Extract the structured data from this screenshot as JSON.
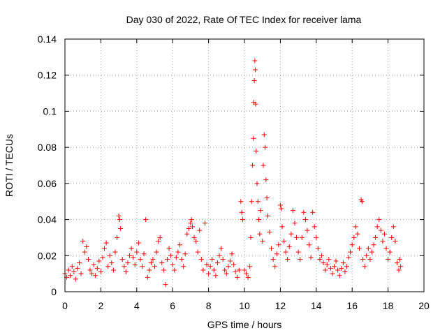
{
  "chart_data": {
    "type": "scatter",
    "title": "Day 030 of 2022, Rate Of TEC Index for receiver lama",
    "xlabel": "GPS time / hours",
    "ylabel": "ROTI / TECUs",
    "xlim": [
      0,
      20
    ],
    "ylim": [
      0,
      0.14
    ],
    "x_ticks": [
      0,
      2,
      4,
      6,
      8,
      10,
      12,
      14,
      16,
      18,
      20
    ],
    "x_tick_labels": [
      "0",
      "2",
      "4",
      "6",
      "8",
      "10",
      "12",
      "14",
      "16",
      "18",
      "20"
    ],
    "y_ticks": [
      0,
      0.02,
      0.04,
      0.06,
      0.08,
      0.1,
      0.12,
      0.14
    ],
    "y_tick_labels": [
      "0",
      "0.02",
      "0.04",
      "0.06",
      "0.08",
      "0.1",
      "0.12",
      "0.14"
    ],
    "grid": true,
    "marker": "+",
    "color": "#ff0000",
    "series": [
      {
        "name": "ROTI",
        "points": [
          [
            0.0,
            0.01
          ],
          [
            0.1,
            0.008
          ],
          [
            0.2,
            0.012
          ],
          [
            0.3,
            0.009
          ],
          [
            0.4,
            0.014
          ],
          [
            0.5,
            0.011
          ],
          [
            0.6,
            0.007
          ],
          [
            0.7,
            0.013
          ],
          [
            0.8,
            0.016
          ],
          [
            0.9,
            0.01
          ],
          [
            1.0,
            0.028
          ],
          [
            1.1,
            0.022
          ],
          [
            1.2,
            0.025
          ],
          [
            1.3,
            0.018
          ],
          [
            1.4,
            0.012
          ],
          [
            1.5,
            0.01
          ],
          [
            1.6,
            0.015
          ],
          [
            1.7,
            0.009
          ],
          [
            1.8,
            0.013
          ],
          [
            1.9,
            0.017
          ],
          [
            2.0,
            0.011
          ],
          [
            2.1,
            0.019
          ],
          [
            2.2,
            0.024
          ],
          [
            2.3,
            0.027
          ],
          [
            2.4,
            0.014
          ],
          [
            2.5,
            0.02
          ],
          [
            2.6,
            0.016
          ],
          [
            2.7,
            0.012
          ],
          [
            2.8,
            0.022
          ],
          [
            2.9,
            0.03
          ],
          [
            3.0,
            0.042
          ],
          [
            3.05,
            0.04
          ],
          [
            3.1,
            0.035
          ],
          [
            3.2,
            0.018
          ],
          [
            3.3,
            0.014
          ],
          [
            3.4,
            0.011
          ],
          [
            3.5,
            0.016
          ],
          [
            3.6,
            0.02
          ],
          [
            3.7,
            0.024
          ],
          [
            3.8,
            0.019
          ],
          [
            3.9,
            0.015
          ],
          [
            4.0,
            0.022
          ],
          [
            4.1,
            0.027
          ],
          [
            4.2,
            0.018
          ],
          [
            4.3,
            0.014
          ],
          [
            4.4,
            0.021
          ],
          [
            4.5,
            0.04
          ],
          [
            4.6,
            0.008
          ],
          [
            4.7,
            0.012
          ],
          [
            4.8,
            0.016
          ],
          [
            4.9,
            0.018
          ],
          [
            5.0,
            0.014
          ],
          [
            5.1,
            0.022
          ],
          [
            5.2,
            0.028
          ],
          [
            5.3,
            0.03
          ],
          [
            5.4,
            0.016
          ],
          [
            5.5,
            0.012
          ],
          [
            5.6,
            0.004
          ],
          [
            5.7,
            0.018
          ],
          [
            5.8,
            0.024
          ],
          [
            5.9,
            0.02
          ],
          [
            6.0,
            0.015
          ],
          [
            6.1,
            0.012
          ],
          [
            6.2,
            0.019
          ],
          [
            6.3,
            0.022
          ],
          [
            6.4,
            0.026
          ],
          [
            6.5,
            0.018
          ],
          [
            6.6,
            0.014
          ],
          [
            6.7,
            0.021
          ],
          [
            6.8,
            0.032
          ],
          [
            6.9,
            0.035
          ],
          [
            7.0,
            0.038
          ],
          [
            7.05,
            0.04
          ],
          [
            7.1,
            0.036
          ],
          [
            7.2,
            0.03
          ],
          [
            7.3,
            0.028
          ],
          [
            7.4,
            0.022
          ],
          [
            7.5,
            0.034
          ],
          [
            7.6,
            0.018
          ],
          [
            7.7,
            0.012
          ],
          [
            7.8,
            0.038
          ],
          [
            7.9,
            0.015
          ],
          [
            8.0,
            0.01
          ],
          [
            8.1,
            0.014
          ],
          [
            8.2,
            0.018
          ],
          [
            8.3,
            0.012
          ],
          [
            8.4,
            0.009
          ],
          [
            8.5,
            0.016
          ],
          [
            8.6,
            0.02
          ],
          [
            8.7,
            0.024
          ],
          [
            8.8,
            0.018
          ],
          [
            8.9,
            0.012
          ],
          [
            9.0,
            0.01
          ],
          [
            9.1,
            0.014
          ],
          [
            9.2,
            0.017
          ],
          [
            9.3,
            0.021
          ],
          [
            9.4,
            0.015
          ],
          [
            9.5,
            0.011
          ],
          [
            9.6,
            0.008
          ],
          [
            9.7,
            0.012
          ],
          [
            9.8,
            0.05
          ],
          [
            9.85,
            0.044
          ],
          [
            9.9,
            0.04
          ],
          [
            10.0,
            0.012
          ],
          [
            10.1,
            0.01
          ],
          [
            10.2,
            0.008
          ],
          [
            10.3,
            0.014
          ],
          [
            10.35,
            0.03
          ],
          [
            10.4,
            0.05
          ],
          [
            10.45,
            0.07
          ],
          [
            10.5,
            0.085
          ],
          [
            10.52,
            0.105
          ],
          [
            10.55,
            0.117
          ],
          [
            10.58,
            0.128
          ],
          [
            10.6,
            0.123
          ],
          [
            10.62,
            0.104
          ],
          [
            10.65,
            0.078
          ],
          [
            10.7,
            0.06
          ],
          [
            10.75,
            0.05
          ],
          [
            10.8,
            0.04
          ],
          [
            10.85,
            0.032
          ],
          [
            10.9,
            0.045
          ],
          [
            11.0,
            0.028
          ],
          [
            11.05,
            0.07
          ],
          [
            11.1,
            0.087
          ],
          [
            11.15,
            0.08
          ],
          [
            11.2,
            0.062
          ],
          [
            11.25,
            0.052
          ],
          [
            11.3,
            0.042
          ],
          [
            11.4,
            0.033
          ],
          [
            11.5,
            0.024
          ],
          [
            11.6,
            0.018
          ],
          [
            11.7,
            0.014
          ],
          [
            11.8,
            0.021
          ],
          [
            11.9,
            0.026
          ],
          [
            12.0,
            0.048
          ],
          [
            12.05,
            0.046
          ],
          [
            12.1,
            0.036
          ],
          [
            12.2,
            0.028
          ],
          [
            12.3,
            0.022
          ],
          [
            12.4,
            0.018
          ],
          [
            12.5,
            0.025
          ],
          [
            12.6,
            0.032
          ],
          [
            12.7,
            0.045
          ],
          [
            12.8,
            0.038
          ],
          [
            12.9,
            0.03
          ],
          [
            13.0,
            0.022
          ],
          [
            13.1,
            0.018
          ],
          [
            13.2,
            0.03
          ],
          [
            13.3,
            0.044
          ],
          [
            13.4,
            0.04
          ],
          [
            13.5,
            0.034
          ],
          [
            13.6,
            0.026
          ],
          [
            13.7,
            0.019
          ],
          [
            13.8,
            0.044
          ],
          [
            13.9,
            0.036
          ],
          [
            14.0,
            0.03
          ],
          [
            14.1,
            0.024
          ],
          [
            14.2,
            0.018
          ],
          [
            14.3,
            0.02
          ],
          [
            14.4,
            0.016
          ],
          [
            14.5,
            0.012
          ],
          [
            14.6,
            0.015
          ],
          [
            14.7,
            0.018
          ],
          [
            14.8,
            0.013
          ],
          [
            14.9,
            0.01
          ],
          [
            15.0,
            0.014
          ],
          [
            15.1,
            0.017
          ],
          [
            15.2,
            0.012
          ],
          [
            15.3,
            0.009
          ],
          [
            15.4,
            0.013
          ],
          [
            15.5,
            0.016
          ],
          [
            15.6,
            0.011
          ],
          [
            15.7,
            0.014
          ],
          [
            15.8,
            0.019
          ],
          [
            15.9,
            0.022
          ],
          [
            16.0,
            0.026
          ],
          [
            16.1,
            0.03
          ],
          [
            16.2,
            0.036
          ],
          [
            16.3,
            0.032
          ],
          [
            16.4,
            0.024
          ],
          [
            16.5,
            0.051
          ],
          [
            16.55,
            0.05
          ],
          [
            16.6,
            0.018
          ],
          [
            16.7,
            0.014
          ],
          [
            16.8,
            0.02
          ],
          [
            16.9,
            0.024
          ],
          [
            17.0,
            0.018
          ],
          [
            17.1,
            0.022
          ],
          [
            17.2,
            0.026
          ],
          [
            17.3,
            0.03
          ],
          [
            17.4,
            0.036
          ],
          [
            17.5,
            0.04
          ],
          [
            17.6,
            0.034
          ],
          [
            17.7,
            0.028
          ],
          [
            17.8,
            0.032
          ],
          [
            17.9,
            0.024
          ],
          [
            18.0,
            0.018
          ],
          [
            18.1,
            0.022
          ],
          [
            18.2,
            0.03
          ],
          [
            18.3,
            0.036
          ],
          [
            18.4,
            0.028
          ],
          [
            18.5,
            0.016
          ],
          [
            18.6,
            0.012
          ],
          [
            18.65,
            0.018
          ],
          [
            18.7,
            0.014
          ]
        ]
      }
    ]
  }
}
